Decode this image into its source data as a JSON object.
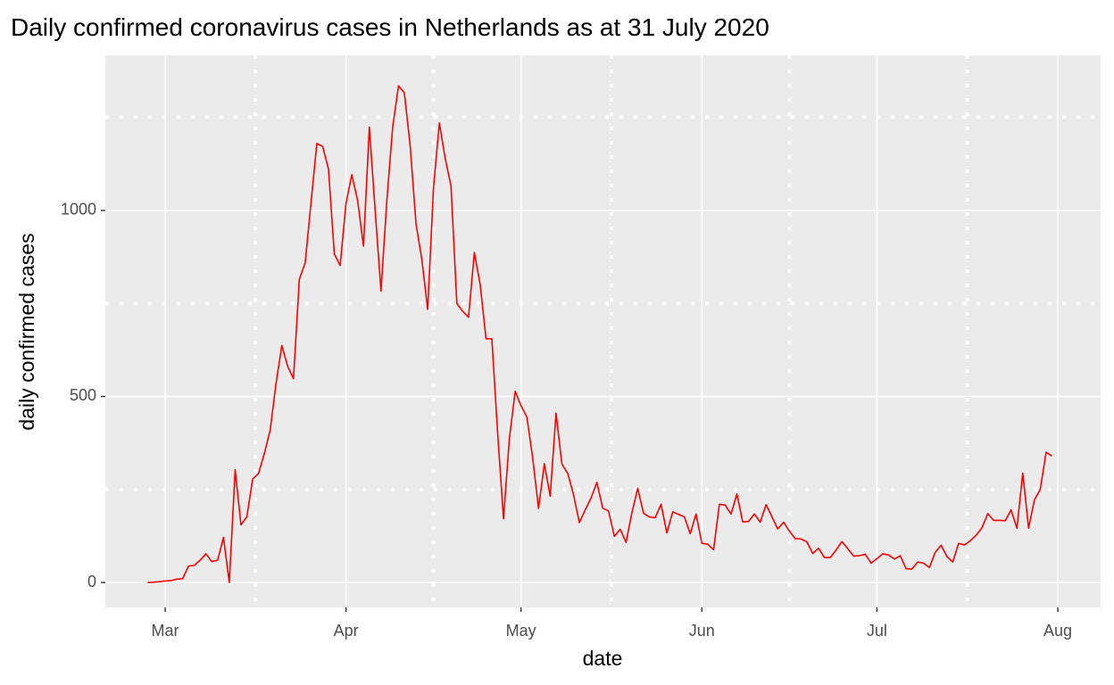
{
  "chart_data": {
    "type": "line",
    "title": "Daily confirmed coronavirus cases in Netherlands as at 31 July 2020",
    "x_label": "date",
    "y_label": "daily confirmed cases",
    "color": "#ff0000",
    "categories": [
      null,
      null,
      null,
      "Mar",
      null,
      null,
      null,
      null,
      null,
      null,
      null,
      null,
      null,
      null,
      null,
      null,
      null,
      null,
      null,
      null,
      null,
      null,
      null,
      null,
      null,
      null,
      null,
      null,
      null,
      null,
      null,
      null,
      null,
      null,
      "Apr",
      null,
      null,
      null,
      null,
      null,
      null,
      null,
      null,
      null,
      null,
      null,
      null,
      null,
      null,
      null,
      null,
      null,
      null,
      null,
      null,
      null,
      null,
      null,
      null,
      null,
      null,
      null,
      null,
      null,
      "May",
      null,
      null,
      null,
      null,
      null,
      null,
      null,
      null,
      null,
      null,
      null,
      null,
      null,
      null,
      null,
      null,
      null,
      null,
      null,
      null,
      null,
      null,
      null,
      null,
      null,
      null,
      null,
      null,
      null,
      null,
      "Jun",
      null,
      null,
      null,
      null,
      null,
      null,
      null,
      null,
      null,
      null,
      null,
      null,
      null,
      null,
      null,
      null,
      null,
      null,
      null,
      null,
      null,
      null,
      null,
      null,
      null,
      null,
      null,
      null,
      null,
      "Jul",
      null,
      null,
      null,
      null,
      null,
      null,
      null,
      null,
      null,
      null,
      null,
      null,
      null,
      null,
      null,
      null,
      null,
      null,
      null,
      null,
      null,
      null,
      null,
      null,
      null,
      null,
      null,
      null,
      null,
      null,
      "Aug"
    ],
    "values": [
      0,
      1,
      2,
      4,
      5,
      9,
      10,
      44,
      46,
      60,
      77,
      56,
      60,
      121,
      0,
      303,
      155,
      176,
      278,
      293,
      346,
      409,
      534,
      637,
      581,
      548,
      815,
      859,
      1020,
      1180,
      1172,
      1111,
      883,
      852,
      1019,
      1096,
      1026,
      904,
      1224,
      1000,
      783,
      1026,
      1224,
      1335,
      1316,
      1174,
      964,
      868,
      734,
      1061,
      1235,
      1140,
      1066,
      750,
      729,
      713,
      887,
      801,
      655,
      655,
      400,
      171,
      386,
      514,
      475,
      445,
      335,
      199,
      319,
      232,
      455,
      319,
      293,
      236,
      161,
      195,
      227,
      269,
      200,
      192,
      124,
      143,
      108,
      187,
      253,
      186,
      176,
      174,
      210,
      133,
      190,
      183,
      176,
      131,
      184,
      105,
      103,
      88,
      210,
      208,
      184,
      238,
      163,
      164,
      184,
      162,
      209,
      177,
      144,
      162,
      138,
      118,
      117,
      109,
      78,
      92,
      67,
      67,
      87,
      110,
      91,
      71,
      72,
      76,
      52,
      64,
      77,
      74,
      63,
      72,
      37,
      36,
      55,
      52,
      40,
      81,
      100,
      70,
      55,
      105,
      101,
      112,
      127,
      147,
      185,
      167,
      167,
      166,
      195,
      146,
      294,
      146,
      222,
      250,
      350,
      340,
      null
    ],
    "ylim": [
      -67,
      1417
    ],
    "yticks": [
      0,
      500,
      1000
    ],
    "grid": true
  }
}
